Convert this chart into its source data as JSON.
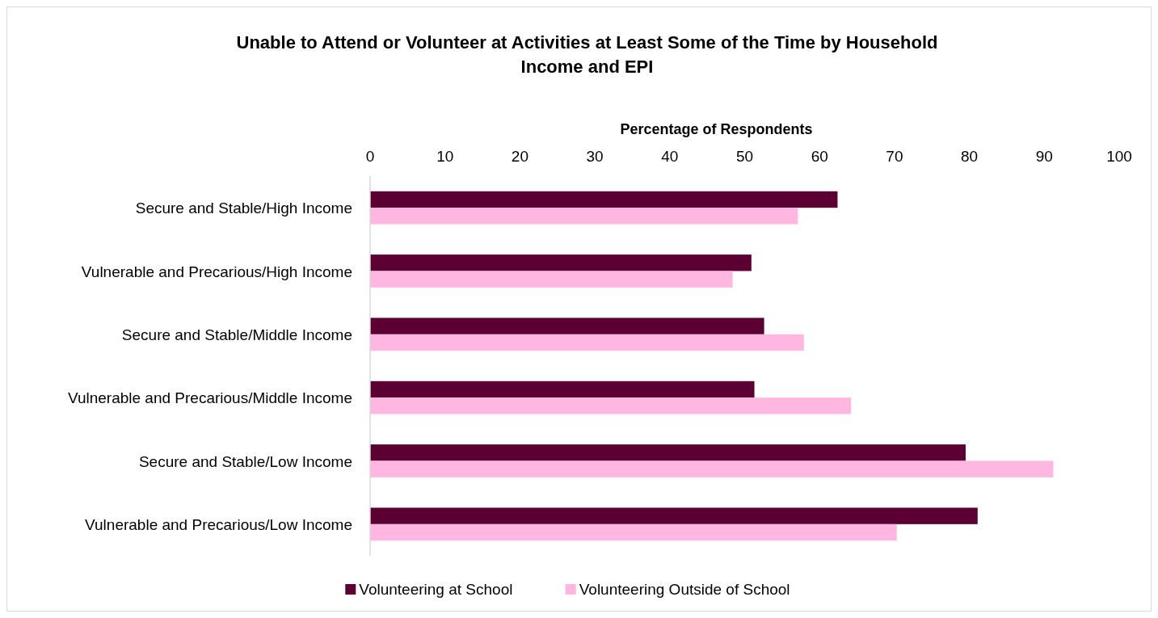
{
  "chart_data": {
    "type": "bar",
    "orientation": "horizontal",
    "title": "Unable to Attend or Volunteer at Activities at Least Some of the Time by Household Income and EPI",
    "xlabel": "Percentage of Respondents",
    "categories": [
      "Secure and Stable/High Income",
      "Vulnerable and Precarious/High Income",
      "Secure and Stable/Middle Income",
      "Vulnerable and Precarious/Middle Income",
      "Secure and Stable/Low Income",
      "Vulnerable and Precarious/Low Income"
    ],
    "series": [
      {
        "name": "Volunteering at School",
        "color": "#5c0033",
        "values": [
          62.4,
          50.9,
          52.6,
          51.3,
          79.5,
          81.1
        ]
      },
      {
        "name": "Volunteering Outside of School",
        "color": "#ffb7e1",
        "values": [
          57.1,
          48.4,
          57.9,
          64.2,
          91.2,
          70.3
        ]
      }
    ],
    "xlim": [
      0,
      100
    ],
    "xticks": [
      0,
      10,
      20,
      30,
      40,
      50,
      60,
      70,
      80,
      90,
      100
    ],
    "grid": false,
    "legend": "bottom"
  }
}
